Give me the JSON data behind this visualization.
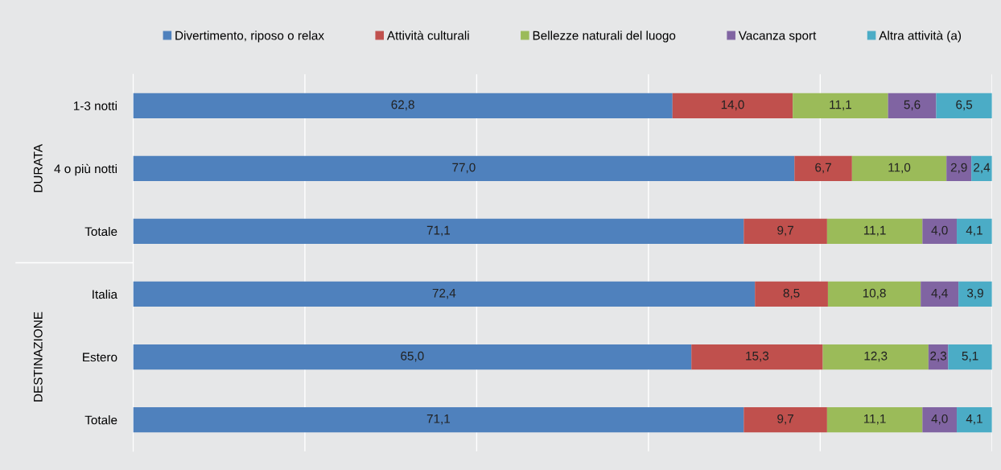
{
  "chart_data": {
    "type": "bar",
    "orientation": "horizontal",
    "stacked": true,
    "categories": [
      "1-3 notti",
      "4 o più notti",
      "Totale",
      "Italia",
      "Estero",
      "Totale"
    ],
    "series": [
      {
        "name": "Divertimento, riposo o relax",
        "color": "#4f81bd",
        "values": [
          62.8,
          77.0,
          71.1,
          72.4,
          65.0,
          71.1
        ],
        "value_labels": [
          "62,8",
          "77,0",
          "71,1",
          "72,4",
          "65,0",
          "71,1"
        ]
      },
      {
        "name": "Attività culturali",
        "color": "#c0504d",
        "values": [
          14.0,
          6.7,
          9.7,
          8.5,
          15.3,
          9.7
        ],
        "value_labels": [
          "14,0",
          "6,7",
          "9,7",
          "8,5",
          "15,3",
          "9,7"
        ]
      },
      {
        "name": "Bellezze naturali del luogo",
        "color": "#9bbb59",
        "values": [
          11.1,
          11.0,
          11.1,
          10.8,
          12.3,
          11.1
        ],
        "value_labels": [
          "11,1",
          "11,0",
          "11,1",
          "10,8",
          "12,3",
          "11,1"
        ]
      },
      {
        "name": "Vacanza sport",
        "color": "#8064a2",
        "values": [
          5.6,
          2.9,
          4.0,
          4.4,
          2.3,
          4.0
        ],
        "value_labels": [
          "5,6",
          "2,9",
          "4,0",
          "4,4",
          "2,3",
          "4,0"
        ]
      },
      {
        "name": "Altra attività (a)",
        "color": "#4bacc6",
        "values": [
          6.5,
          2.4,
          4.1,
          3.9,
          5.1,
          4.1
        ],
        "value_labels": [
          "6,5",
          "2,4",
          "4,1",
          "3,9",
          "5,1",
          "4,1"
        ]
      }
    ],
    "grid": "x",
    "legend": "top",
    "tick_labels": "y",
    "annotations": [
      "DURATA",
      "DESTINAZIONE"
    ]
  }
}
